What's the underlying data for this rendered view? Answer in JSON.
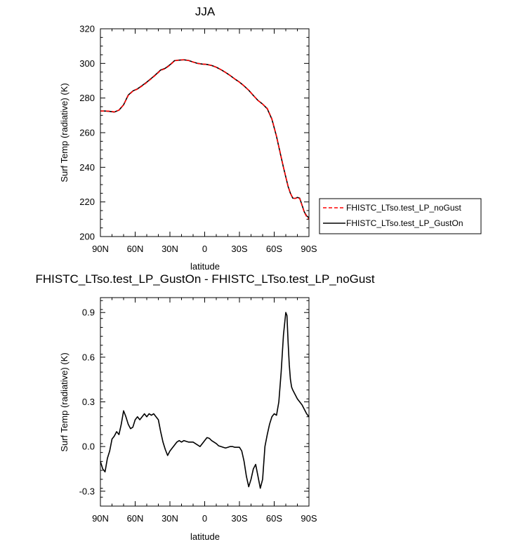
{
  "chart_data": [
    {
      "type": "line",
      "title": "JJA",
      "xlabel": "latitude",
      "ylabel": "Surf Temp (radiative) (K)",
      "xlim": [
        90,
        -90
      ],
      "ylim": [
        200,
        320
      ],
      "x_ticks": [
        90,
        60,
        30,
        0,
        -30,
        -60,
        -90
      ],
      "x_tick_labels": [
        "90N",
        "60N",
        "30N",
        "0",
        "30S",
        "60S",
        "90S"
      ],
      "y_ticks": [
        200,
        220,
        240,
        260,
        280,
        300,
        320
      ],
      "y_tick_labels": [
        "200",
        "220",
        "240",
        "260",
        "280",
        "300",
        "320"
      ],
      "legend": [
        "FHISTC_LTso.test_LP_noGust",
        "FHISTC_LTso.test_LP_GustOn"
      ],
      "series": [
        {
          "name": "FHISTC_LTso.test_LP_noGust",
          "color": "#ff0000",
          "dash": "dashed",
          "x": [
            90,
            86,
            82,
            78,
            74,
            70,
            66,
            62,
            58,
            54,
            50,
            46,
            42,
            38,
            34,
            30,
            26,
            22,
            18,
            14,
            10,
            6,
            2,
            -2,
            -6,
            -10,
            -14,
            -18,
            -22,
            -26,
            -30,
            -34,
            -38,
            -42,
            -46,
            -50,
            -54,
            -58,
            -62,
            -66,
            -68,
            -70,
            -72,
            -74,
            -76,
            -78,
            -80,
            -82,
            -84,
            -86,
            -88,
            -90
          ],
          "values": [
            272.5,
            272.5,
            272.4,
            272.0,
            273.0,
            276.0,
            281.5,
            284.0,
            285.2,
            287.0,
            289.0,
            291.2,
            293.5,
            296.0,
            297.0,
            299.0,
            301.5,
            302.0,
            302.1,
            301.7,
            300.8,
            300.0,
            299.6,
            299.4,
            298.8,
            297.8,
            296.4,
            294.8,
            293.0,
            291.0,
            289.2,
            287.0,
            284.5,
            281.5,
            278.6,
            276.5,
            274.0,
            268.0,
            258.0,
            246.0,
            240.0,
            234.5,
            229.0,
            225.0,
            222.2,
            222.0,
            222.5,
            222.0,
            218.0,
            214.0,
            211.5,
            210.0
          ]
        },
        {
          "name": "FHISTC_LTso.test_LP_GustOn",
          "color": "#000000",
          "dash": "solid",
          "x": [
            90,
            86,
            82,
            78,
            74,
            70,
            66,
            62,
            58,
            54,
            50,
            46,
            42,
            38,
            34,
            30,
            26,
            22,
            18,
            14,
            10,
            6,
            2,
            -2,
            -6,
            -10,
            -14,
            -18,
            -22,
            -26,
            -30,
            -34,
            -38,
            -42,
            -46,
            -50,
            -54,
            -58,
            -62,
            -66,
            -68,
            -70,
            -72,
            -74,
            -76,
            -78,
            -80,
            -82,
            -84,
            -86,
            -88,
            -90
          ],
          "values": [
            272.5,
            272.5,
            272.3,
            271.9,
            273.0,
            276.1,
            281.7,
            284.1,
            285.3,
            287.2,
            289.2,
            291.4,
            293.7,
            296.2,
            297.2,
            299.2,
            301.6,
            301.9,
            302.1,
            301.7,
            300.8,
            300.0,
            299.6,
            299.4,
            298.8,
            297.8,
            296.4,
            294.8,
            293.0,
            291.0,
            289.2,
            287.0,
            284.5,
            281.5,
            278.6,
            276.5,
            273.8,
            267.8,
            257.8,
            245.8,
            239.9,
            234.4,
            228.9,
            225.0,
            222.2,
            222.0,
            222.6,
            222.2,
            218.2,
            214.2,
            211.9,
            210.9
          ]
        }
      ]
    },
    {
      "type": "line",
      "title": "FHISTC_LTso.test_LP_GustOn - FHISTC_LTso.test_LP_noGust",
      "xlabel": "latitude",
      "ylabel": "Surf Temp (radiative) (K)",
      "xlim": [
        90,
        -90
      ],
      "ylim": [
        -0.4,
        1.0
      ],
      "x_ticks": [
        90,
        60,
        30,
        0,
        -30,
        -60,
        -90
      ],
      "x_tick_labels": [
        "90N",
        "60N",
        "30N",
        "0",
        "30S",
        "60S",
        "90S"
      ],
      "y_ticks": [
        -0.3,
        0.0,
        0.3,
        0.6,
        0.9
      ],
      "y_tick_labels": [
        "-0.3",
        "0.0",
        "0.3",
        "0.6",
        "0.9"
      ],
      "series": [
        {
          "name": "FHISTC_LTso.test_LP_GustOn - FHISTC_LTso.test_LP_noGust",
          "color": "#000000",
          "dash": "solid",
          "x": [
            90,
            88,
            86,
            84,
            82,
            80,
            78,
            76,
            74,
            72,
            70,
            68,
            66,
            64,
            62,
            60,
            58,
            56,
            54,
            52,
            50,
            48,
            46,
            44,
            42,
            40,
            38,
            36,
            34,
            32,
            30,
            28,
            26,
            24,
            22,
            20,
            18,
            16,
            14,
            12,
            10,
            8,
            6,
            4,
            2,
            0,
            -2,
            -4,
            -6,
            -8,
            -10,
            -12,
            -14,
            -16,
            -18,
            -20,
            -22,
            -24,
            -26,
            -28,
            -30,
            -32,
            -34,
            -36,
            -38,
            -40,
            -42,
            -44,
            -46,
            -48,
            -50,
            -52,
            -54,
            -56,
            -58,
            -60,
            -62,
            -64,
            -66,
            -68,
            -70,
            -71,
            -72,
            -73,
            -74,
            -75,
            -76,
            -78,
            -80,
            -82,
            -84,
            -86,
            -88,
            -90
          ],
          "values": [
            -0.1,
            -0.15,
            -0.17,
            -0.08,
            -0.03,
            0.05,
            0.07,
            0.1,
            0.08,
            0.15,
            0.24,
            0.2,
            0.15,
            0.12,
            0.13,
            0.18,
            0.2,
            0.18,
            0.2,
            0.22,
            0.2,
            0.22,
            0.21,
            0.22,
            0.2,
            0.18,
            0.1,
            0.03,
            -0.02,
            -0.06,
            -0.03,
            -0.01,
            0.01,
            0.03,
            0.04,
            0.03,
            0.04,
            0.035,
            0.03,
            0.03,
            0.03,
            0.02,
            0.01,
            0.0,
            0.02,
            0.04,
            0.06,
            0.055,
            0.04,
            0.03,
            0.02,
            0.005,
            0.0,
            -0.005,
            -0.01,
            -0.005,
            -0.0,
            -0.0,
            -0.005,
            -0.005,
            -0.005,
            -0.03,
            -0.1,
            -0.2,
            -0.27,
            -0.22,
            -0.15,
            -0.12,
            -0.2,
            -0.28,
            -0.22,
            0.0,
            0.08,
            0.15,
            0.2,
            0.22,
            0.21,
            0.3,
            0.5,
            0.75,
            0.9,
            0.88,
            0.7,
            0.55,
            0.45,
            0.4,
            0.38,
            0.35,
            0.32,
            0.3,
            0.28,
            0.25,
            0.22,
            0.2
          ]
        }
      ]
    }
  ]
}
